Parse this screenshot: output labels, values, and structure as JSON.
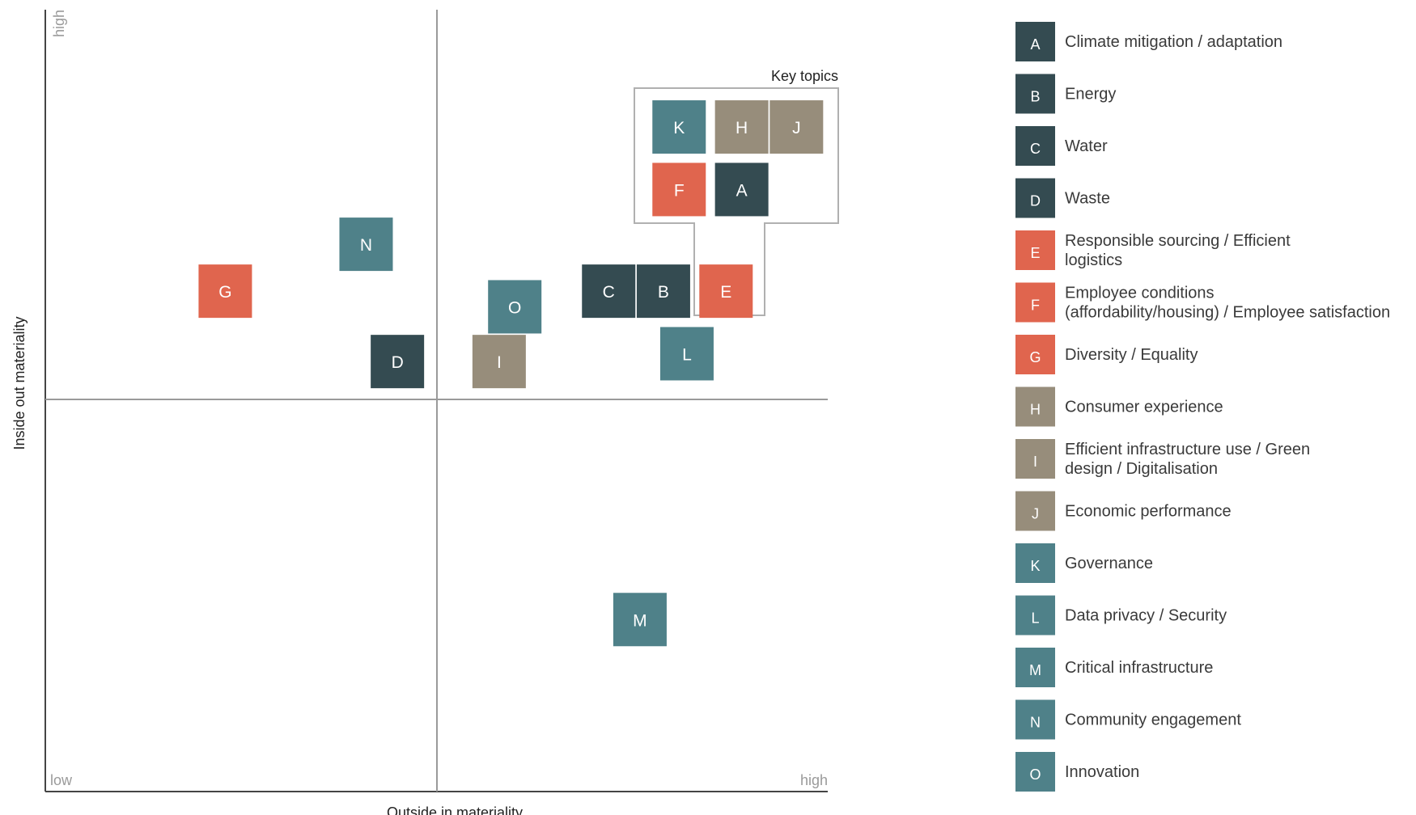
{
  "chart_data": {
    "type": "scatter",
    "title": "",
    "xlabel": "Outside in materiality",
    "ylabel": "Inside out materiality",
    "x_low_label": "low",
    "x_high_label": "high",
    "y_high_label": "high",
    "xlim": [
      0,
      10
    ],
    "ylim": [
      0,
      10
    ],
    "grid": false,
    "legend_position": "right",
    "highlight_group": {
      "label": "Key topics",
      "members": [
        "K",
        "H",
        "J",
        "F",
        "A",
        "E"
      ]
    },
    "colors": {
      "environmental": "#344b51",
      "social": "#e0654e",
      "economic": "#978d7b",
      "governance": "#4f8189"
    },
    "points": [
      {
        "id": "A",
        "label": "Climate mitigation / adaptation",
        "group": "environmental",
        "x": 8.9,
        "y": 7.7
      },
      {
        "id": "B",
        "label": "Energy",
        "group": "environmental",
        "x": 7.9,
        "y": 6.4
      },
      {
        "id": "C",
        "label": "Water",
        "group": "environmental",
        "x": 7.2,
        "y": 6.4
      },
      {
        "id": "D",
        "label": "Waste",
        "group": "environmental",
        "x": 4.5,
        "y": 5.5
      },
      {
        "id": "E",
        "label": "Responsible sourcing / Efficient logistics",
        "group": "social",
        "x": 8.7,
        "y": 6.4
      },
      {
        "id": "F",
        "label": "Employee conditions (affordability/housing) / Employee satisfaction",
        "group": "social",
        "x": 8.1,
        "y": 7.7
      },
      {
        "id": "G",
        "label": "Diversity / Equality",
        "group": "social",
        "x": 2.3,
        "y": 6.4
      },
      {
        "id": "H",
        "label": "Consumer experience",
        "group": "economic",
        "x": 8.9,
        "y": 8.5
      },
      {
        "id": "I",
        "label": "Efficient infrastructure use / Green design / Digitalisation",
        "group": "economic",
        "x": 5.8,
        "y": 5.5
      },
      {
        "id": "J",
        "label": "Economic performance",
        "group": "economic",
        "x": 9.6,
        "y": 8.5
      },
      {
        "id": "K",
        "label": "Governance",
        "group": "governance",
        "x": 8.1,
        "y": 8.5
      },
      {
        "id": "L",
        "label": "Data privacy / Security",
        "group": "governance",
        "x": 8.2,
        "y": 5.6
      },
      {
        "id": "M",
        "label": "Critical infrastructure",
        "group": "governance",
        "x": 7.6,
        "y": 2.2
      },
      {
        "id": "N",
        "label": "Community engagement",
        "group": "governance",
        "x": 4.1,
        "y": 7.0
      },
      {
        "id": "O",
        "label": "Innovation",
        "group": "governance",
        "x": 6.0,
        "y": 6.2
      }
    ]
  }
}
